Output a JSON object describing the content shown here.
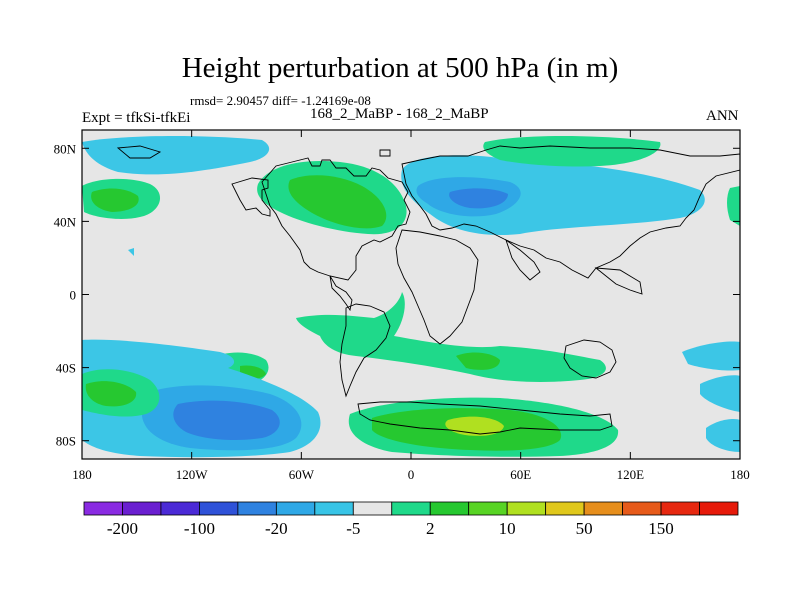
{
  "title": "Height perturbation at 500 hPa (in m)",
  "stats": "rmsd= 2.90457 diff= -1.24169e-08",
  "expt": "Expt = tfkSi-tfkEi",
  "subtitle": "168_2_MaBP - 168_2_MaBP",
  "season": "ANN",
  "map": {
    "lon_range": [
      -180,
      180
    ],
    "lat_range": [
      -90,
      90
    ],
    "x_ticks": [
      {
        "value": -180,
        "label": "180"
      },
      {
        "value": -120,
        "label": "120W"
      },
      {
        "value": -60,
        "label": "60W"
      },
      {
        "value": 0,
        "label": "0"
      },
      {
        "value": 60,
        "label": "60E"
      },
      {
        "value": 120,
        "label": "120E"
      },
      {
        "value": 180,
        "label": "180"
      }
    ],
    "y_ticks": [
      {
        "value": 80,
        "label": "80N"
      },
      {
        "value": 40,
        "label": "40N"
      },
      {
        "value": 0,
        "label": "0"
      },
      {
        "value": -40,
        "label": "40S"
      },
      {
        "value": -80,
        "label": "80S"
      }
    ]
  },
  "colorbar": {
    "colors": [
      "#8a2be2",
      "#6a1fd0",
      "#4b2ad6",
      "#2f52d8",
      "#2f82e0",
      "#2fa8e6",
      "#38c4e6",
      "#e6e6e6",
      "#1fd98a",
      "#26c830",
      "#58d424",
      "#b0e020",
      "#e0c81c",
      "#e68e1c",
      "#e65a1a",
      "#e62810",
      "#e61a0a"
    ],
    "labels": [
      {
        "slot": 1,
        "text": "-200"
      },
      {
        "slot": 3,
        "text": "-100"
      },
      {
        "slot": 5,
        "text": "-20"
      },
      {
        "slot": 7,
        "text": "-5"
      },
      {
        "slot": 9,
        "text": "2"
      },
      {
        "slot": 11,
        "text": "10"
      },
      {
        "slot": 13,
        "text": "50"
      },
      {
        "slot": 15,
        "text": "150"
      }
    ]
  },
  "field_colors": {
    "background": "#e6e6e6",
    "light_blue": "#3cc6e6",
    "mid_blue": "#2fa8e6",
    "blue": "#2f82e0",
    "dark_blue": "#2f52d8",
    "light_green": "#1fd98a",
    "green": "#26c830",
    "yellow_green": "#b0e020"
  }
}
